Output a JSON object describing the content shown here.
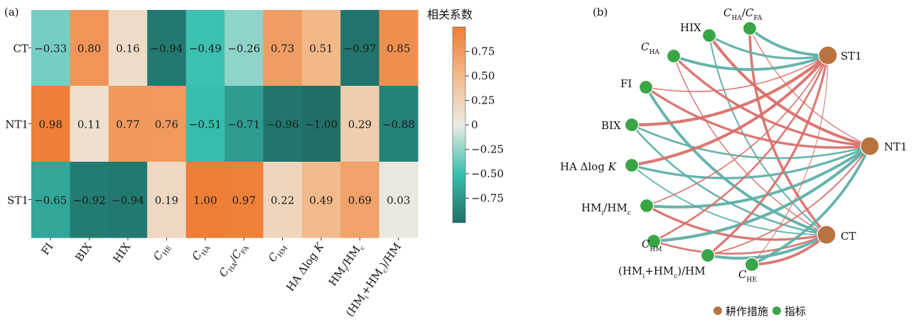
{
  "chart_data": [
    {
      "type": "heatmap",
      "panel_label": "(a)",
      "rows": [
        "CT",
        "NT1",
        "ST1"
      ],
      "columns": [
        "FI",
        "BIX",
        "HIX",
        "C_HE",
        "C_HA",
        "C_HA/C_FA",
        "C_HM",
        "HA Δlog K",
        "HMi/HMc",
        "(HMi+HMc)/HM"
      ],
      "values": [
        [
          -0.33,
          0.8,
          0.16,
          -0.94,
          -0.49,
          -0.26,
          0.73,
          0.51,
          -0.97,
          0.85
        ],
        [
          0.98,
          0.11,
          0.77,
          0.76,
          -0.51,
          -0.71,
          -0.96,
          -1.0,
          0.29,
          -0.88
        ],
        [
          -0.65,
          -0.92,
          -0.94,
          0.19,
          1.0,
          0.97,
          0.22,
          0.49,
          0.69,
          0.03
        ]
      ],
      "value_labels": [
        [
          "−0.33",
          "0.80",
          "0.16",
          "−0.94",
          "−0.49",
          "−0.26",
          "0.73",
          "0.51",
          "−0.97",
          "0.85"
        ],
        [
          "0.98",
          "0.11",
          "0.77",
          "0.76",
          "−0.51",
          "−0.71",
          "−0.96",
          "−1.00",
          "0.29",
          "−0.88"
        ],
        [
          "−0.65",
          "−0.92",
          "−0.94",
          "0.19",
          "1.00",
          "0.97",
          "0.22",
          "0.49",
          "0.69",
          "0.03"
        ]
      ],
      "colorbar": {
        "title": "相关系数",
        "range": [
          -1,
          1
        ],
        "ticks": [
          "0.75",
          "0.50",
          "0.25",
          "0",
          "−0.25",
          "−0.50",
          "−0.75"
        ],
        "tick_values": [
          0.75,
          0.5,
          0.25,
          0,
          -0.25,
          -0.5,
          -0.75
        ],
        "colors": {
          "negative": "#1f6f67",
          "mid_negative": "#38bfae",
          "neutral": "#ecebe5",
          "mid_positive": "#f2b98a",
          "positive": "#ee7d35"
        }
      }
    },
    {
      "type": "network",
      "panel_label": "(b)",
      "treatments": [
        "ST1",
        "NT1",
        "CT"
      ],
      "indicators": [
        "HIX",
        "C_HA/C_FA",
        "C_HA",
        "FI",
        "BIX",
        "HA Δlog K",
        "HMi/HMc",
        "C_HM",
        "(HMi+HMc)/HM",
        "C_HE"
      ],
      "edge_colors": {
        "positive": "#d9716b",
        "negative": "#5fb0a8"
      },
      "node_colors": {
        "treatment": "#b8733e",
        "indicator": "#3aa547"
      },
      "legend": [
        {
          "label": "耕作措施",
          "color": "#b8733e"
        },
        {
          "label": "指标",
          "color": "#3aa547"
        }
      ]
    }
  ]
}
